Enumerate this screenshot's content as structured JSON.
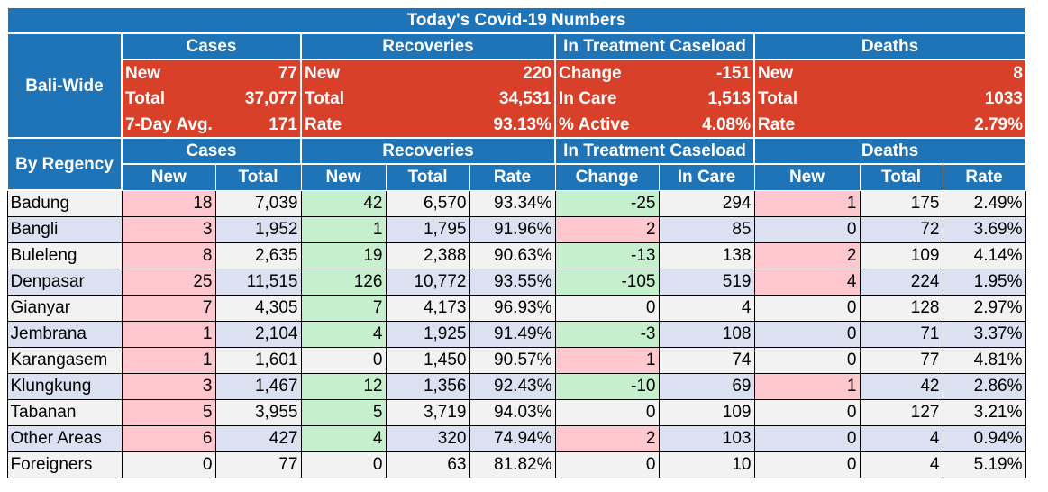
{
  "title": "Today's Covid-19 Numbers",
  "groups": {
    "cases": "Cases",
    "recoveries": "Recoveries",
    "treatment": "In Treatment Caseload",
    "deaths": "Deaths"
  },
  "bali_wide": {
    "label": "Bali-Wide",
    "rows": [
      {
        "cases_label": "New",
        "cases_value": "77",
        "rec_label": "New",
        "rec_value": "220",
        "treat_label": "Change",
        "treat_value": "-151",
        "deaths_label": "New",
        "deaths_value": "8"
      },
      {
        "cases_label": "Total",
        "cases_value": "37,077",
        "rec_label": "Total",
        "rec_value": "34,531",
        "treat_label": "In Care",
        "treat_value": "1,513",
        "deaths_label": "Total",
        "deaths_value": "1033"
      },
      {
        "cases_label": "7-Day Avg.",
        "cases_value": "171",
        "rec_label": "Rate",
        "rec_value": "93.13%",
        "treat_label": "% Active",
        "treat_value": "4.08%",
        "deaths_label": "Rate",
        "deaths_value": "2.79%"
      }
    ]
  },
  "by_regency": {
    "label": "By Regency",
    "subheaders": [
      "New",
      "Total",
      "New",
      "Total",
      "Rate",
      "Change",
      "In Care",
      "New",
      "Total",
      "Rate"
    ],
    "rows": [
      {
        "name": "Badung",
        "c_new": "18",
        "c_total": "7,039",
        "r_new": "42",
        "r_total": "6,570",
        "r_rate": "93.34%",
        "t_change": "-25",
        "t_care": "294",
        "d_new": "1",
        "d_total": "175",
        "d_rate": "2.49%"
      },
      {
        "name": "Bangli",
        "c_new": "3",
        "c_total": "1,952",
        "r_new": "1",
        "r_total": "1,795",
        "r_rate": "91.96%",
        "t_change": "2",
        "t_care": "85",
        "d_new": "0",
        "d_total": "72",
        "d_rate": "3.69%"
      },
      {
        "name": "Buleleng",
        "c_new": "8",
        "c_total": "2,635",
        "r_new": "19",
        "r_total": "2,388",
        "r_rate": "90.63%",
        "t_change": "-13",
        "t_care": "138",
        "d_new": "2",
        "d_total": "109",
        "d_rate": "4.14%"
      },
      {
        "name": "Denpasar",
        "c_new": "25",
        "c_total": "11,515",
        "r_new": "126",
        "r_total": "10,772",
        "r_rate": "93.55%",
        "t_change": "-105",
        "t_care": "519",
        "d_new": "4",
        "d_total": "224",
        "d_rate": "1.95%"
      },
      {
        "name": "Gianyar",
        "c_new": "7",
        "c_total": "4,305",
        "r_new": "7",
        "r_total": "4,173",
        "r_rate": "96.93%",
        "t_change": "0",
        "t_care": "4",
        "d_new": "0",
        "d_total": "128",
        "d_rate": "2.97%"
      },
      {
        "name": "Jembrana",
        "c_new": "1",
        "c_total": "2,104",
        "r_new": "4",
        "r_total": "1,925",
        "r_rate": "91.49%",
        "t_change": "-3",
        "t_care": "108",
        "d_new": "0",
        "d_total": "71",
        "d_rate": "3.37%"
      },
      {
        "name": "Karangasem",
        "c_new": "1",
        "c_total": "1,601",
        "r_new": "0",
        "r_total": "1,450",
        "r_rate": "90.57%",
        "t_change": "1",
        "t_care": "74",
        "d_new": "0",
        "d_total": "77",
        "d_rate": "4.81%"
      },
      {
        "name": "Klungkung",
        "c_new": "3",
        "c_total": "1,467",
        "r_new": "12",
        "r_total": "1,356",
        "r_rate": "92.43%",
        "t_change": "-10",
        "t_care": "69",
        "d_new": "1",
        "d_total": "42",
        "d_rate": "2.86%"
      },
      {
        "name": "Tabanan",
        "c_new": "5",
        "c_total": "3,955",
        "r_new": "5",
        "r_total": "3,719",
        "r_rate": "94.03%",
        "t_change": "0",
        "t_care": "109",
        "d_new": "0",
        "d_total": "127",
        "d_rate": "3.21%"
      },
      {
        "name": "Other Areas",
        "c_new": "6",
        "c_total": "427",
        "r_new": "4",
        "r_total": "320",
        "r_rate": "74.94%",
        "t_change": "2",
        "t_care": "103",
        "d_new": "0",
        "d_total": "4",
        "d_rate": "0.94%"
      },
      {
        "name": "Foreigners",
        "c_new": "0",
        "c_total": "77",
        "r_new": "0",
        "r_total": "63",
        "r_rate": "81.82%",
        "t_change": "0",
        "t_care": "10",
        "d_new": "0",
        "d_total": "4",
        "d_rate": "5.19%"
      }
    ]
  },
  "colors": {
    "header_blue": "#1f74b8",
    "summary_red": "#d9402a",
    "increase_pink": "#ffc7ce",
    "decrease_green": "#c6efce",
    "row_alt_blue": "#dce1f1",
    "row_alt_grey": "#f2f2f2"
  }
}
